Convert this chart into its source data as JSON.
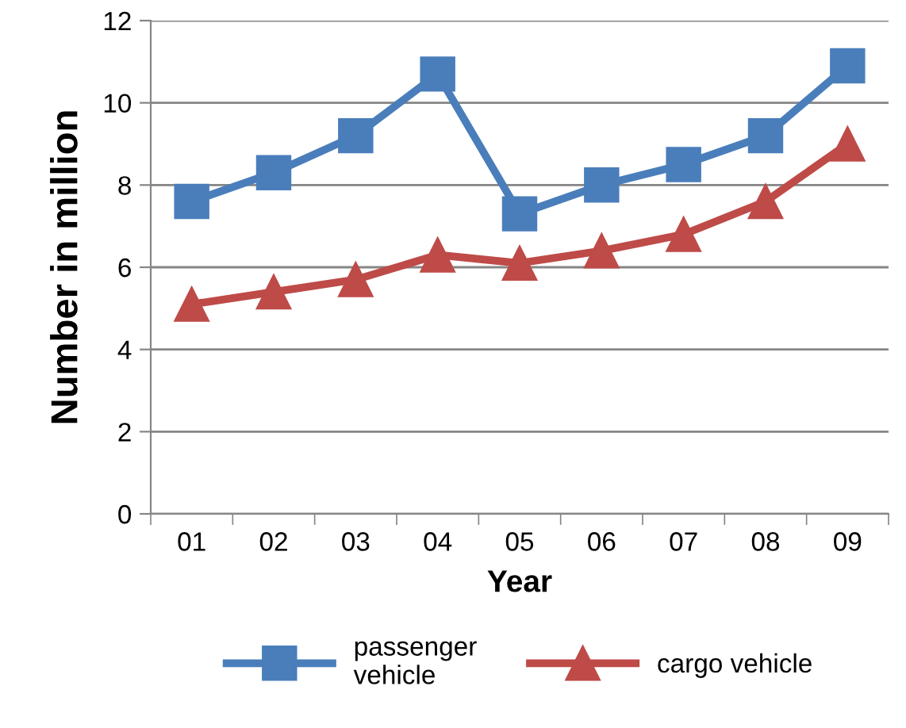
{
  "chart_data": {
    "type": "line",
    "xlabel": "Year",
    "ylabel": "Number in million",
    "categories": [
      "01",
      "02",
      "03",
      "04",
      "05",
      "06",
      "07",
      "08",
      "09"
    ],
    "series": [
      {
        "name": "passenger\nvehicle",
        "color": "#4a7ebb",
        "marker": "square",
        "values": [
          7.6,
          8.3,
          9.2,
          10.7,
          7.3,
          8.0,
          8.5,
          9.2,
          10.9
        ]
      },
      {
        "name": "cargo vehicle",
        "color": "#be4b48",
        "marker": "triangle",
        "values": [
          5.1,
          5.4,
          5.7,
          6.3,
          6.1,
          6.4,
          6.8,
          7.6,
          9.0
        ]
      }
    ],
    "ylim": [
      0,
      12
    ],
    "yticks": [
      0,
      2,
      4,
      6,
      8,
      10,
      12
    ],
    "grid": "y",
    "legend": "bottom"
  }
}
